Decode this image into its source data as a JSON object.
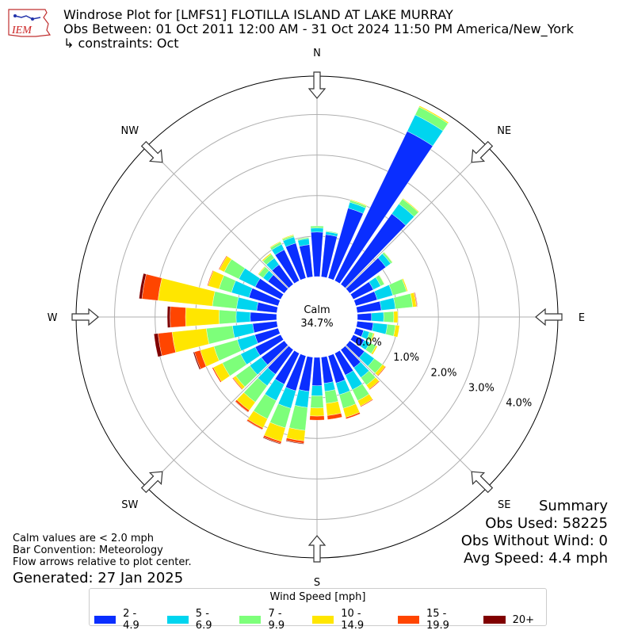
{
  "header": {
    "title_line1": "Windrose Plot for [LMFS1] FLOTILLA ISLAND AT LAKE MURRAY",
    "title_line2": "Obs Between: 01 Oct 2011 12:00 AM - 31 Oct 2024 11:50 PM America/New_York",
    "title_line3": "↳ constraints: Oct",
    "logo_text": "IEM"
  },
  "notes": {
    "calm_note": "Calm values are < 2.0 mph",
    "bar_convention": "Bar Convention: Meteorology",
    "flow_arrows": "Flow arrows relative to plot center.",
    "generated": "Generated: 27 Jan 2025"
  },
  "summary": {
    "heading": "Summary",
    "obs_used": "Obs Used: 58225",
    "obs_without_wind": "Obs Without Wind: 0",
    "avg_speed": "Avg Speed: 4.4 mph"
  },
  "legend": {
    "title": "Wind Speed [mph]",
    "items": [
      "2 - 4.9",
      "5 - 6.9",
      "7 - 9.9",
      "10 - 14.9",
      "15 - 19.9",
      "20+"
    ]
  },
  "chart_data": {
    "type": "windrose",
    "calm_label": "Calm",
    "calm_value": "34.7%",
    "r_ticks": [
      0.0,
      1.0,
      2.0,
      3.0,
      4.0
    ],
    "r_tick_labels": [
      "0.0%",
      "1.0%",
      "2.0%",
      "3.0%",
      "4.0%"
    ],
    "r_max": 4.95,
    "directions": [
      "N",
      "NE",
      "E",
      "SE",
      "S",
      "SW",
      "W",
      "NW"
    ],
    "bin_labels": [
      "2 - 4.9",
      "5 - 6.9",
      "7 - 9.9",
      "10 - 14.9",
      "15 - 19.9",
      "20+"
    ],
    "bin_colors": [
      "#0a2eff",
      "#00d5ef",
      "#7dff7a",
      "#ffe600",
      "#ff4500",
      "#800000"
    ],
    "sector_directions_deg": [
      0,
      10,
      20,
      30,
      40,
      50,
      60,
      70,
      80,
      90,
      100,
      110,
      120,
      130,
      140,
      150,
      160,
      170,
      180,
      190,
      200,
      210,
      220,
      230,
      240,
      250,
      260,
      270,
      280,
      290,
      300,
      310,
      320,
      330,
      340,
      350
    ],
    "sector_cumulative_percent": [
      [
        1.1,
        1.2,
        1.25,
        1.25,
        1.25,
        1.25
      ],
      [
        1.05,
        1.12,
        1.14,
        1.14,
        1.14,
        1.14
      ],
      [
        1.8,
        1.95,
        2.0,
        2.02,
        2.02,
        2.02
      ],
      [
        4.1,
        4.55,
        4.77,
        4.8,
        4.8,
        4.8
      ],
      [
        2.15,
        2.45,
        2.6,
        2.62,
        2.62,
        2.62
      ],
      [
        1.1,
        1.25,
        1.3,
        1.31,
        1.31,
        1.31
      ],
      [
        0.55,
        0.75,
        0.85,
        0.86,
        0.86,
        0.86
      ],
      [
        0.55,
        0.95,
        1.3,
        1.33,
        1.33,
        1.33
      ],
      [
        0.6,
        0.95,
        1.38,
        1.47,
        1.49,
        1.5
      ],
      [
        0.35,
        0.65,
        0.9,
        1.0,
        1.0,
        1.0
      ],
      [
        0.4,
        0.75,
        0.95,
        1.05,
        1.05,
        1.05
      ],
      [
        0.2,
        0.35,
        0.45,
        0.48,
        0.48,
        0.48
      ],
      [
        0.3,
        0.45,
        0.62,
        0.66,
        0.66,
        0.66
      ],
      [
        0.45,
        0.75,
        1.0,
        1.08,
        1.1,
        1.1
      ],
      [
        0.55,
        0.85,
        1.08,
        1.2,
        1.22,
        1.22
      ],
      [
        0.6,
        1.0,
        1.3,
        1.45,
        1.47,
        1.47
      ],
      [
        0.7,
        1.0,
        1.35,
        1.58,
        1.62,
        1.62
      ],
      [
        0.65,
        0.85,
        1.15,
        1.45,
        1.55,
        1.55
      ],
      [
        0.7,
        0.95,
        1.25,
        1.45,
        1.55,
        1.55
      ],
      [
        0.85,
        1.25,
        1.82,
        2.08,
        2.14,
        2.16
      ],
      [
        0.9,
        1.35,
        1.85,
        2.2,
        2.25,
        2.27
      ],
      [
        0.85,
        1.3,
        1.8,
        2.05,
        2.09,
        2.1
      ],
      [
        0.75,
        1.1,
        1.6,
        1.85,
        1.9,
        1.91
      ],
      [
        0.7,
        1.05,
        1.48,
        1.56,
        1.58,
        1.58
      ],
      [
        0.7,
        1.1,
        1.6,
        1.85,
        1.88,
        1.88
      ],
      [
        0.6,
        1.05,
        1.65,
        2.0,
        2.15,
        2.18
      ],
      [
        0.6,
        1.1,
        1.75,
        2.6,
        2.95,
        3.05
      ],
      [
        0.65,
        1.0,
        1.42,
        2.25,
        2.63,
        2.7
      ],
      [
        0.5,
        1.0,
        1.6,
        2.95,
        3.35,
        3.42
      ],
      [
        0.75,
        1.2,
        1.52,
        1.8,
        1.82,
        1.82
      ],
      [
        0.7,
        1.15,
        1.55,
        1.68,
        1.7,
        1.7
      ],
      [
        0.5,
        0.65,
        0.78,
        0.8,
        0.8,
        0.8
      ],
      [
        0.6,
        0.8,
        0.92,
        0.95,
        0.95,
        0.95
      ],
      [
        0.85,
        1.0,
        1.06,
        1.08,
        1.08,
        1.08
      ],
      [
        0.9,
        1.06,
        1.1,
        1.12,
        1.12,
        1.12
      ],
      [
        0.8,
        0.95,
        0.98,
        0.98,
        0.98,
        0.98
      ]
    ]
  }
}
